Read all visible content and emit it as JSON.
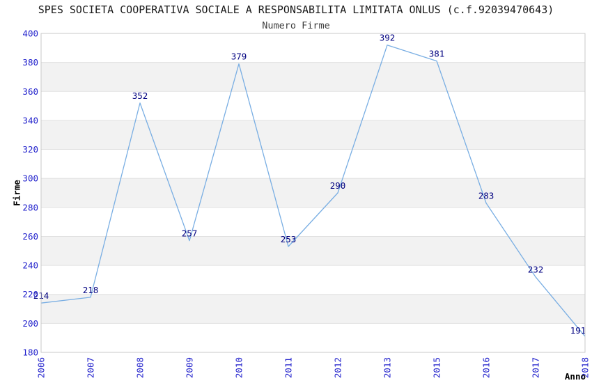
{
  "chart_data": {
    "type": "line",
    "title": "SPES SOCIETA COOPERATIVA SOCIALE A RESPONSABILITA LIMITATA ONLUS (c.f.92039470643)",
    "subtitle": "Numero Firme",
    "xlabel": "Anno",
    "ylabel": "Firme",
    "categories": [
      "2006",
      "2007",
      "2008",
      "2009",
      "2010",
      "2011",
      "2012",
      "2013",
      "2015",
      "2016",
      "2017",
      "2018"
    ],
    "values": [
      214,
      218,
      352,
      257,
      379,
      253,
      290,
      392,
      381,
      283,
      232,
      191
    ],
    "ylim": [
      180,
      400
    ],
    "ytick_step": 20,
    "yticks": [
      180,
      200,
      220,
      240,
      260,
      280,
      300,
      320,
      340,
      360,
      380,
      400
    ],
    "grid": "horizontal-with-alternating-bands",
    "legend": "none",
    "colors": {
      "line": "#79aee3",
      "point_label": "#000080",
      "axis_tick_label": "#2222cc",
      "band_fill": "#f2f2f2",
      "gridline": "#e0e0e0",
      "plot_border": "#c9c9c9",
      "title_text": "#1a1a1a",
      "subtitle_text": "#3f3f3f",
      "axis_title_text": "#000000"
    }
  }
}
